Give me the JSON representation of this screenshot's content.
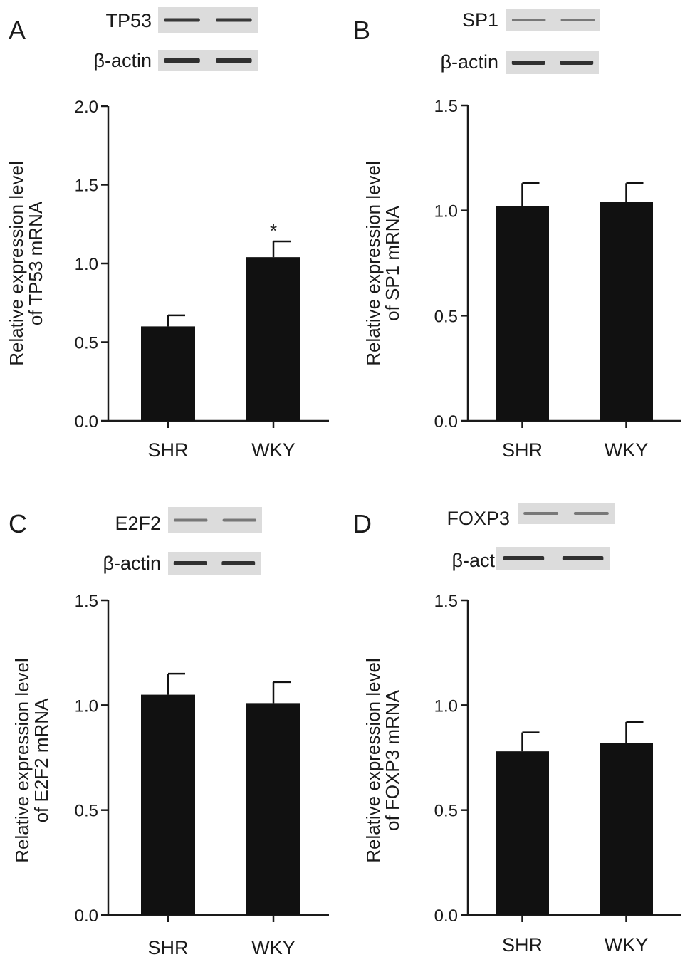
{
  "chart_data": [
    {
      "type": "bar",
      "panel": "A",
      "blot_labels": [
        "TP53",
        "β-actin"
      ],
      "ylabel_lines": [
        "Relative expression level",
        "of TP53 mRNA"
      ],
      "categories": [
        "SHR",
        "WKY"
      ],
      "values": [
        0.6,
        1.04
      ],
      "errors": [
        0.07,
        0.1
      ],
      "ylim": [
        0,
        2.0
      ],
      "yticks": [
        "0.0",
        "0.5",
        "1.0",
        "1.5",
        "2.0"
      ],
      "annotations": [
        "",
        "*"
      ]
    },
    {
      "type": "bar",
      "panel": "B",
      "blot_labels": [
        "SP1",
        "β-actin"
      ],
      "ylabel_lines": [
        "Relative expression level",
        "of SP1 mRNA"
      ],
      "categories": [
        "SHR",
        "WKY"
      ],
      "values": [
        1.02,
        1.04
      ],
      "errors": [
        0.11,
        0.09
      ],
      "ylim": [
        0,
        1.5
      ],
      "yticks": [
        "0.0",
        "0.5",
        "1.0",
        "1.5"
      ],
      "annotations": [
        "",
        ""
      ]
    },
    {
      "type": "bar",
      "panel": "C",
      "blot_labels": [
        "E2F2",
        "β-actin"
      ],
      "ylabel_lines": [
        "Relative expression level",
        "of E2F2 mRNA"
      ],
      "categories": [
        "SHR",
        "WKY"
      ],
      "values": [
        1.05,
        1.01
      ],
      "errors": [
        0.1,
        0.1
      ],
      "ylim": [
        0,
        1.5
      ],
      "yticks": [
        "0.0",
        "0.5",
        "1.0",
        "1.5"
      ],
      "annotations": [
        "",
        ""
      ]
    },
    {
      "type": "bar",
      "panel": "D",
      "blot_labels": [
        "FOXP3",
        "β-actin"
      ],
      "ylabel_lines": [
        "Relative expression level",
        "of FOXP3 mRNA"
      ],
      "categories": [
        "SHR",
        "WKY"
      ],
      "values": [
        0.78,
        0.82
      ],
      "errors": [
        0.09,
        0.1
      ],
      "ylim": [
        0,
        1.5
      ],
      "yticks": [
        "0.0",
        "0.5",
        "1.0",
        "1.5"
      ],
      "annotations": [
        "",
        ""
      ]
    }
  ],
  "colors": {
    "bar": "#111111",
    "axis": "#1a1a1a",
    "blot_bg": "#dcdcdc",
    "band": "#262626"
  }
}
